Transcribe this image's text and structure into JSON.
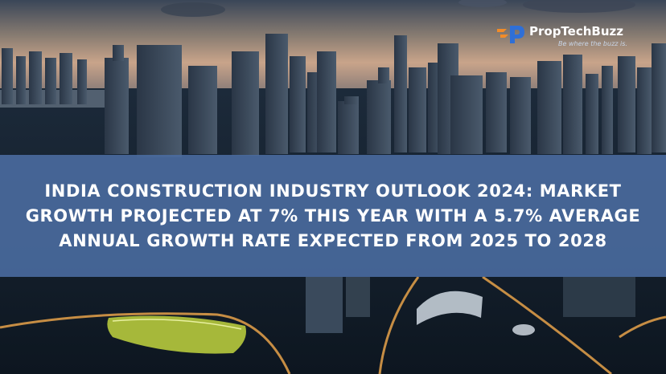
{
  "logo": {
    "brand": "PropTechBuzz",
    "tagline": "Be where the buzz is."
  },
  "headline": "INDIA CONSTRUCTION INDUSTRY OUTLOOK 2024: MARKET GROWTH PROJECTED AT 7% THIS YEAR WITH A 5.7% AVERAGE ANNUAL GROWTH RATE EXPECTED FROM 2025 TO 2028",
  "colors": {
    "band": "#4a6ca0",
    "logo_orange": "#f28c28",
    "logo_blue": "#2f6fd6"
  }
}
